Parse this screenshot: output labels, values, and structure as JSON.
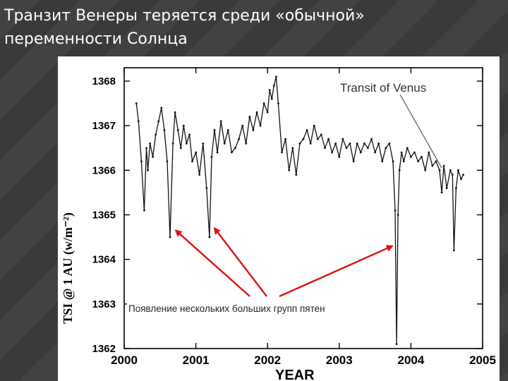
{
  "slide": {
    "title_line1": "Транзит Венеры теряется среди «обычной»",
    "title_line2": "переменности Солнца"
  },
  "chart_data": {
    "type": "line",
    "xlabel": "YEAR",
    "ylabel": "TSI @ 1 AU (w/m⁻²)",
    "xlim": [
      2000,
      2005
    ],
    "ylim": [
      1362,
      1368.3
    ],
    "x_ticks": [
      "2000",
      "2001",
      "2002",
      "2003",
      "2004",
      "2005"
    ],
    "y_ticks": [
      "1362",
      "1363",
      "1364",
      "1365",
      "1366",
      "1367",
      "1368"
    ],
    "grid": false,
    "series": [
      {
        "x": [
          2000.17,
          2000.2,
          2000.24,
          2000.28,
          2000.31,
          2000.33,
          2000.36,
          2000.4,
          2000.44,
          2000.48,
          2000.52,
          2000.56,
          2000.6,
          2000.64,
          2000.68,
          2000.71,
          2000.75,
          2000.79,
          2000.83,
          2000.87,
          2000.91,
          2000.95,
          2001.0,
          2001.05,
          2001.1,
          2001.15,
          2001.19,
          2001.22,
          2001.26,
          2001.3,
          2001.35,
          2001.4,
          2001.45,
          2001.5,
          2001.55,
          2001.6,
          2001.65,
          2001.7,
          2001.75,
          2001.8,
          2001.85,
          2001.9,
          2001.95,
          2002.0,
          2002.03,
          2002.06,
          2002.09,
          2002.12,
          2002.15,
          2002.2,
          2002.25,
          2002.3,
          2002.35,
          2002.4,
          2002.45,
          2002.5,
          2002.55,
          2002.6,
          2002.65,
          2002.7,
          2002.75,
          2002.8,
          2002.85,
          2002.9,
          2002.95,
          2003.0,
          2003.05,
          2003.1,
          2003.15,
          2003.2,
          2003.25,
          2003.3,
          2003.35,
          2003.4,
          2003.45,
          2003.5,
          2003.55,
          2003.6,
          2003.65,
          2003.7,
          2003.75,
          2003.78,
          2003.8,
          2003.82,
          2003.84,
          2003.87,
          2003.9,
          2003.95,
          2004.0,
          2004.05,
          2004.1,
          2004.15,
          2004.2,
          2004.25,
          2004.3,
          2004.35,
          2004.4,
          2004.43,
          2004.46,
          2004.5,
          2004.55,
          2004.58,
          2004.6,
          2004.63,
          2004.66,
          2004.7,
          2004.73
        ],
        "y": [
          1367.5,
          1367.1,
          1366.2,
          1365.1,
          1366.5,
          1366.0,
          1366.6,
          1366.3,
          1366.8,
          1367.1,
          1367.4,
          1366.9,
          1366.2,
          1364.5,
          1366.6,
          1367.3,
          1366.9,
          1366.5,
          1367.0,
          1366.6,
          1366.8,
          1366.2,
          1366.4,
          1365.9,
          1366.6,
          1365.6,
          1364.5,
          1366.3,
          1366.9,
          1366.4,
          1367.1,
          1366.6,
          1366.9,
          1366.4,
          1366.5,
          1366.7,
          1367.0,
          1366.6,
          1367.2,
          1366.9,
          1367.3,
          1367.0,
          1367.5,
          1367.3,
          1367.8,
          1367.6,
          1367.9,
          1368.1,
          1367.5,
          1366.4,
          1366.7,
          1366.0,
          1366.5,
          1365.9,
          1366.6,
          1366.7,
          1366.9,
          1366.6,
          1367.0,
          1366.7,
          1366.8,
          1366.5,
          1366.7,
          1366.4,
          1366.6,
          1366.3,
          1366.7,
          1366.5,
          1366.6,
          1366.2,
          1366.6,
          1366.4,
          1366.6,
          1366.5,
          1366.7,
          1366.4,
          1366.6,
          1366.2,
          1366.5,
          1366.6,
          1366.2,
          1365.1,
          1362.1,
          1365.0,
          1366.0,
          1366.4,
          1366.2,
          1366.5,
          1366.3,
          1366.4,
          1366.2,
          1366.3,
          1366.0,
          1366.4,
          1366.1,
          1366.2,
          1366.0,
          1365.5,
          1366.1,
          1365.6,
          1366.0,
          1365.9,
          1364.2,
          1365.6,
          1366.0,
          1365.8,
          1365.9
        ]
      }
    ],
    "annotations": {
      "transit_label": "Transit of Venus",
      "sunspot_note": "Появление нескольких больших групп пятен",
      "transit_point": [
        2004.43,
        1366.05
      ],
      "arrow_targets": [
        [
          2000.72,
          1364.65
        ],
        [
          2001.26,
          1364.7
        ],
        [
          2003.74,
          1364.3
        ]
      ],
      "arrow_origin_year_value": [
        2001.9,
        1363.2
      ]
    },
    "colors": {
      "line": "#111111",
      "arrows": "#dd1111"
    }
  }
}
